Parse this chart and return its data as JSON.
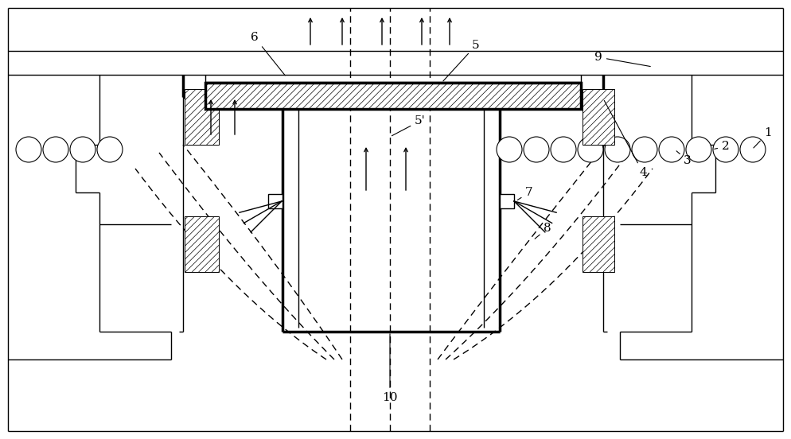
{
  "bg_color": "#ffffff",
  "fig_w": 9.94,
  "fig_h": 5.52,
  "dpi": 100
}
